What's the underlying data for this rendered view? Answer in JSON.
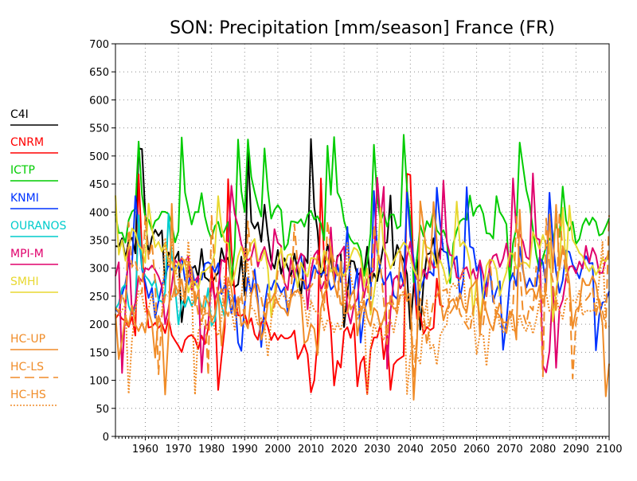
{
  "chart_data": {
    "type": "line",
    "title": "SON: Precipitation [mm/season] France (FR)",
    "xlabel": "",
    "ylabel": "",
    "xlim": [
      1951,
      2100
    ],
    "ylim": [
      0,
      700
    ],
    "x_ticks": [
      1960,
      1970,
      1980,
      1990,
      2000,
      2010,
      2020,
      2030,
      2040,
      2050,
      2060,
      2070,
      2080,
      2090,
      2100
    ],
    "y_ticks": [
      0,
      50,
      100,
      150,
      200,
      250,
      300,
      350,
      400,
      450,
      500,
      550,
      600,
      650,
      700
    ],
    "grid": true,
    "legend_position": "left",
    "series": [
      {
        "name": "C4I",
        "color": "#000000",
        "dash": "solid",
        "x_start": 1951,
        "x_end": 2050,
        "summary": {
          "min": 190,
          "typical": [
            260,
            380
          ],
          "max": 532
        }
      },
      {
        "name": "CNRM",
        "color": "#ff0000",
        "dash": "solid",
        "x_start": 1951,
        "x_end": 2050,
        "summary": {
          "min": 75,
          "typical": [
            140,
            240
          ],
          "max": 470
        }
      },
      {
        "name": "ICTP",
        "color": "#00cc00",
        "dash": "solid",
        "x_start": 1951,
        "x_end": 2100,
        "summary": {
          "min": 270,
          "typical": [
            330,
            420
          ],
          "max": 538
        }
      },
      {
        "name": "KNMI",
        "color": "#0033ff",
        "dash": "solid",
        "x_start": 1951,
        "x_end": 2100,
        "summary": {
          "min": 150,
          "typical": [
            240,
            340
          ],
          "max": 450
        }
      },
      {
        "name": "OURANOS",
        "color": "#00cccc",
        "dash": "solid",
        "x_start": 1951,
        "x_end": 1985,
        "summary": {
          "min": 140,
          "typical": [
            200,
            300
          ],
          "max": 400
        }
      },
      {
        "name": "MPI-M",
        "color": "#e0006c",
        "dash": "solid",
        "x_start": 1951,
        "x_end": 2100,
        "summary": {
          "min": 110,
          "typical": [
            250,
            370
          ],
          "max": 470
        }
      },
      {
        "name": "SMHI",
        "color": "#e8d830",
        "dash": "solid",
        "x_start": 1951,
        "x_end": 2100,
        "summary": {
          "min": 200,
          "typical": [
            270,
            360
          ],
          "max": 430
        }
      },
      {
        "name": "HC-UP",
        "color": "#f08c28",
        "dash": "solid",
        "x_start": 1951,
        "x_end": 2100,
        "summary": {
          "min": 60,
          "typical": [
            170,
            300
          ],
          "max": 420
        }
      },
      {
        "name": "HC-LS",
        "color": "#f08c28",
        "dash": "long-dash",
        "x_start": 1951,
        "x_end": 2100,
        "summary": {
          "min": 100,
          "typical": [
            180,
            300
          ],
          "max": 400
        }
      },
      {
        "name": "HC-HS",
        "color": "#f08c28",
        "dash": "dotted",
        "x_start": 1951,
        "x_end": 2100,
        "summary": {
          "min": 70,
          "typical": [
            160,
            280
          ],
          "max": 360
        }
      }
    ]
  }
}
